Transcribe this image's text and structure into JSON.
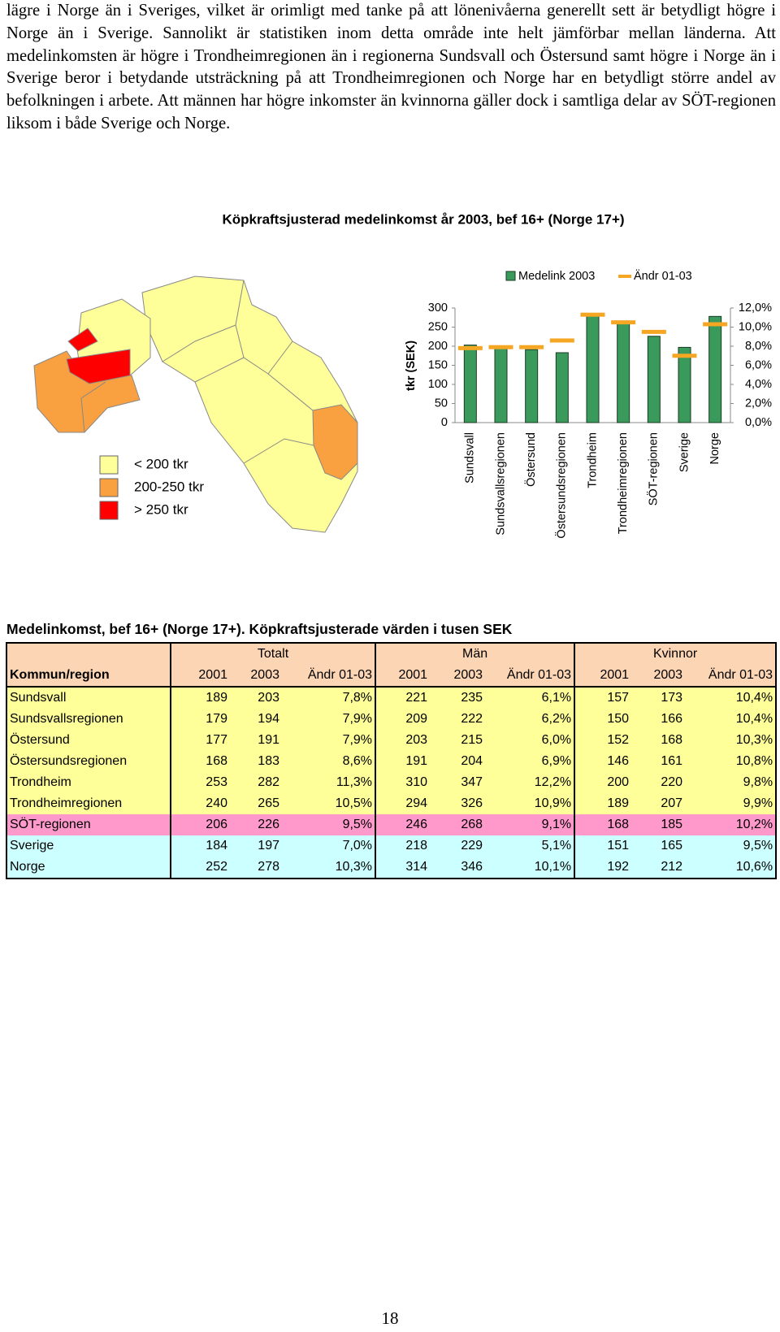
{
  "text": "lägre i Norge än i Sveriges, vilket är orimligt med tanke på att lönenivåerna generellt sett är betydligt högre i Norge än i Sverige. Sannolikt är statistiken inom detta område inte helt jämförbar mellan länderna. Att medelinkomsten är högre i Trondheimregionen än i regionerna Sundsvall och Östersund samt högre i Norge än i Sverige beror i betydande utsträckning på att Trondheimregionen och Norge har en betydligt större andel av befolkningen i arbete. Att männen har högre inkomster än kvinnorna gäller dock i samtliga delar av SÖT-regionen liksom i både Sverige och Norge.",
  "chart_data": {
    "type": "bar",
    "title": "Köpkraftsjusterad medelinkomst år 2003, bef 16+ (Norge 17+)",
    "ylabel": "tkr (SEK)",
    "categories": [
      "Sundsvall",
      "Sundsvallsregionen",
      "Östersund",
      "Östersundsregionen",
      "Trondheim",
      "Trondheimregionen",
      "SÖT-regionen",
      "Sverige",
      "Norge"
    ],
    "series": [
      {
        "name": "Medelink 2003",
        "color": "#3a9a5c",
        "values": [
          203,
          194,
          191,
          183,
          282,
          265,
          226,
          197,
          278
        ]
      },
      {
        "name": "Ändr 01-03",
        "color": "#f5a623",
        "axis": "y2",
        "values": [
          7.8,
          7.9,
          7.9,
          8.6,
          11.3,
          10.5,
          9.5,
          7.0,
          10.3
        ]
      }
    ],
    "ylim": [
      0,
      300
    ],
    "yticks": [
      0,
      50,
      100,
      150,
      200,
      250,
      300
    ],
    "y2lim": [
      0,
      12
    ],
    "y2ticks": [
      {
        "value": 0,
        "label": "0,0%"
      },
      {
        "value": 2,
        "label": "2,0%"
      },
      {
        "value": 4,
        "label": "4,0%"
      },
      {
        "value": 6,
        "label": "6,0%"
      },
      {
        "value": 8,
        "label": "8,0%"
      },
      {
        "value": 10,
        "label": "10,0%"
      },
      {
        "value": 12,
        "label": "12,0%"
      }
    ],
    "legend": "top-right"
  },
  "map_legend": [
    {
      "label": "< 200 tkr",
      "color": "#ffff99"
    },
    {
      "label": "200-250 tkr",
      "color": "#f9a040"
    },
    {
      "label": "> 250 tkr",
      "color": "#ff0000"
    }
  ],
  "table": {
    "title": "Medelinkomst, bef 16+ (Norge 17+). Köpkraftsjusterade värden i tusen SEK",
    "groups": [
      "Totalt",
      "Män",
      "Kvinnor"
    ],
    "columns": [
      "Kommun/region",
      "2001",
      "2003",
      "Ändr 01-03",
      "2001",
      "2003",
      "Ändr 01-03",
      "2001",
      "2003",
      "Ändr 01-03"
    ],
    "rows": [
      [
        "Sundsvall",
        "189",
        "203",
        "7,8%",
        "221",
        "235",
        "6,1%",
        "157",
        "173",
        "10,4%"
      ],
      [
        "Sundsvallsregionen",
        "179",
        "194",
        "7,9%",
        "209",
        "222",
        "6,2%",
        "150",
        "166",
        "10,4%"
      ],
      [
        "Östersund",
        "177",
        "191",
        "7,9%",
        "203",
        "215",
        "6,0%",
        "152",
        "168",
        "10,3%"
      ],
      [
        "Östersundsregionen",
        "168",
        "183",
        "8,6%",
        "191",
        "204",
        "6,9%",
        "146",
        "161",
        "10,8%"
      ],
      [
        "Trondheim",
        "253",
        "282",
        "11,3%",
        "310",
        "347",
        "12,2%",
        "200",
        "220",
        "9,8%"
      ],
      [
        "Trondheimregionen",
        "240",
        "265",
        "10,5%",
        "294",
        "326",
        "10,9%",
        "189",
        "207",
        "9,9%"
      ],
      [
        "SÖT-regionen",
        "206",
        "226",
        "9,5%",
        "246",
        "268",
        "9,1%",
        "168",
        "185",
        "10,2%"
      ],
      [
        "Sverige",
        "184",
        "197",
        "7,0%",
        "218",
        "229",
        "5,1%",
        "151",
        "165",
        "9,5%"
      ],
      [
        "Norge",
        "252",
        "278",
        "10,3%",
        "314",
        "346",
        "10,1%",
        "192",
        "212",
        "10,6%"
      ]
    ]
  },
  "page_number": "18"
}
